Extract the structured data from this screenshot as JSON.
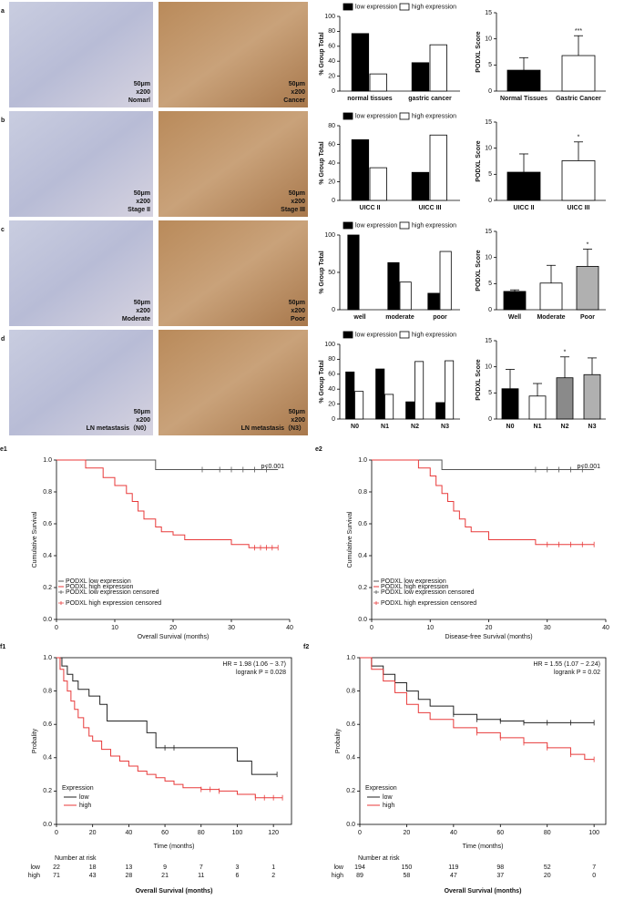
{
  "rows": [
    {
      "label": "a",
      "images": [
        {
          "captions": [
            "50μm",
            "x200",
            "Nomarl"
          ]
        },
        {
          "captions": [
            "50μm",
            "x200",
            "Cancer"
          ]
        }
      ]
    },
    {
      "label": "b",
      "images": [
        {
          "captions": [
            "50μm",
            "x200",
            "Stage II"
          ]
        },
        {
          "captions": [
            "50μm",
            "x200",
            "Stage III"
          ]
        }
      ]
    },
    {
      "label": "c",
      "images": [
        {
          "captions": [
            "50μm",
            "x200",
            "Moderate"
          ]
        },
        {
          "captions": [
            "50μm",
            "x200",
            "Poor"
          ]
        }
      ]
    },
    {
      "label": "d",
      "images": [
        {
          "captions": [
            "50μm",
            "x200",
            "LN metastasis（N0）"
          ]
        },
        {
          "captions": [
            "50μm",
            "x200",
            "LN metastasis（N3）"
          ]
        }
      ]
    }
  ],
  "chart_data": [
    {
      "type": "bar",
      "ylabel": "% Group Total",
      "categories": [
        "normal tissues",
        "gastric cancer"
      ],
      "series": [
        {
          "name": "low expression",
          "color": "#000000",
          "values": [
            77,
            38
          ]
        },
        {
          "name": "high expression",
          "color": "#ffffff",
          "values": [
            23,
            62
          ]
        }
      ],
      "ylim": [
        0,
        100
      ],
      "yticks": [
        0,
        20,
        40,
        60,
        80,
        100
      ]
    },
    {
      "type": "bar",
      "ylabel": "PODXL Score",
      "categories": [
        "Normal Tissues",
        "Gastric Cancer"
      ],
      "values": [
        4,
        6.8
      ],
      "errors": [
        2.4,
        3.8
      ],
      "colors": [
        "#000000",
        "#ffffff"
      ],
      "annotation": "***",
      "ylim": [
        0,
        15
      ],
      "yticks": [
        0,
        5,
        10,
        15
      ]
    },
    {
      "type": "bar",
      "ylabel": "% Group Total",
      "categories": [
        "UICC II",
        "UICC III"
      ],
      "series": [
        {
          "name": "low expression",
          "color": "#000000",
          "values": [
            65,
            30
          ]
        },
        {
          "name": "high expression",
          "color": "#ffffff",
          "values": [
            35,
            70
          ]
        }
      ],
      "ylim": [
        0,
        80
      ],
      "yticks": [
        0,
        20,
        40,
        60,
        80
      ]
    },
    {
      "type": "bar",
      "ylabel": "PODXL Score",
      "categories": [
        "UICC II",
        "UICC III"
      ],
      "values": [
        5.4,
        7.6
      ],
      "errors": [
        3.5,
        3.6
      ],
      "colors": [
        "#000000",
        "#ffffff"
      ],
      "annotation": "*",
      "ylim": [
        0,
        15
      ],
      "yticks": [
        0,
        5,
        10,
        15
      ]
    },
    {
      "type": "bar",
      "ylabel": "% Group Total",
      "categories": [
        "well",
        "moderate",
        "poor"
      ],
      "series": [
        {
          "name": "low expression",
          "color": "#000000",
          "values": [
            100,
            63,
            22
          ]
        },
        {
          "name": "high expression",
          "color": "#ffffff",
          "values": [
            0,
            37,
            78
          ]
        }
      ],
      "ylim": [
        0,
        100
      ],
      "yticks": [
        0,
        50,
        100
      ]
    },
    {
      "type": "bar",
      "ylabel": "PODXL Score",
      "categories": [
        "Well",
        "Moderate",
        "Poor"
      ],
      "values": [
        3.5,
        5.1,
        8.3
      ],
      "errors": [
        0.3,
        3.4,
        3.3
      ],
      "colors": [
        "#000000",
        "#ffffff",
        "#b0b0b0"
      ],
      "annotation": "*",
      "ylim": [
        0,
        15
      ],
      "yticks": [
        0,
        5,
        10,
        15
      ]
    },
    {
      "type": "bar",
      "ylabel": "% Group Total",
      "categories": [
        "N0",
        "N1",
        "N2",
        "N3"
      ],
      "series": [
        {
          "name": "low expression",
          "color": "#000000",
          "values": [
            63,
            67,
            23,
            22
          ]
        },
        {
          "name": "high expression",
          "color": "#ffffff",
          "values": [
            37,
            33,
            77,
            78
          ]
        }
      ],
      "ylim": [
        0,
        100
      ],
      "yticks": [
        0,
        20,
        40,
        60,
        80,
        100
      ]
    },
    {
      "type": "bar",
      "ylabel": "PODXL Score",
      "categories": [
        "N0",
        "N1",
        "N2",
        "N3"
      ],
      "values": [
        5.8,
        4.4,
        7.9,
        8.5
      ],
      "errors": [
        3.7,
        2.4,
        4,
        3.2
      ],
      "colors": [
        "#000000",
        "#ffffff",
        "#8a8a8a",
        "#b0b0b0"
      ],
      "annotation": "*",
      "ylim": [
        0,
        15
      ],
      "yticks": [
        0,
        5,
        10,
        15
      ]
    },
    {
      "type": "step",
      "panel": "e1",
      "ylabel": "Cumulative Survival",
      "xlabel": "Overall Survival    (months)",
      "annotations": [
        "p<0.001"
      ],
      "xlim": [
        0,
        40
      ],
      "xticks": [
        0,
        10,
        20,
        30,
        40
      ],
      "ylim": [
        0,
        1
      ],
      "yticks": [
        {
          "value": 0,
          "label": "0.0"
        },
        {
          "value": 0.2,
          "label": "0.2"
        },
        {
          "value": 0.4,
          "label": "0.4"
        },
        {
          "value": 0.6,
          "label": "0.6"
        },
        {
          "value": 0.8,
          "label": "0.8"
        },
        {
          "value": 1,
          "label": "1.0"
        }
      ],
      "series": [
        {
          "name": "PODXL low expression",
          "color": "#555555",
          "x": [
            0,
            17,
            38
          ],
          "values": [
            1,
            0.94,
            0.94
          ],
          "censored_name": "PODXL low expression censored",
          "censored_x": [
            25,
            28,
            30,
            32,
            34,
            36
          ],
          "censored_values": [
            0.94,
            0.94,
            0.94,
            0.94,
            0.94,
            0.94
          ]
        },
        {
          "name": "PODXL high expression",
          "color": "#e83a3a",
          "x": [
            0,
            5,
            8,
            10,
            12,
            13,
            14,
            15,
            17,
            18,
            20,
            22,
            25,
            30,
            33,
            38
          ],
          "values": [
            1,
            0.95,
            0.89,
            0.84,
            0.79,
            0.74,
            0.68,
            0.63,
            0.58,
            0.55,
            0.53,
            0.5,
            0.5,
            0.47,
            0.45,
            0.45
          ],
          "censored_name": "PODXL high expression censored",
          "censored_x": [
            34,
            35,
            36,
            37,
            38
          ],
          "censored_values": [
            0.45,
            0.45,
            0.45,
            0.45,
            0.45
          ]
        }
      ]
    },
    {
      "type": "step",
      "panel": "e2",
      "ylabel": "Cumulative Survival",
      "xlabel": "Disease-free Survival   (months)",
      "annotations": [
        "p<0.001"
      ],
      "xlim": [
        0,
        40
      ],
      "xticks": [
        0,
        10,
        20,
        30,
        40
      ],
      "ylim": [
        0,
        1
      ],
      "yticks": [
        {
          "value": 0,
          "label": "0.0"
        },
        {
          "value": 0.2,
          "label": "0.2"
        },
        {
          "value": 0.4,
          "label": "0.4"
        },
        {
          "value": 0.6,
          "label": "0.6"
        },
        {
          "value": 0.8,
          "label": "0.8"
        },
        {
          "value": 1,
          "label": "1.0"
        }
      ],
      "series": [
        {
          "name": "PODXL low expression",
          "color": "#555555",
          "x": [
            0,
            12,
            38
          ],
          "values": [
            1,
            0.94,
            0.94
          ],
          "censored_name": "PODXL low expression censored",
          "censored_x": [
            28,
            30,
            32,
            34,
            36
          ],
          "censored_values": [
            0.94,
            0.94,
            0.94,
            0.94,
            0.94
          ]
        },
        {
          "name": "PODXL high expression",
          "color": "#e83a3a",
          "x": [
            0,
            8,
            10,
            11,
            12,
            13,
            14,
            15,
            16,
            17,
            20,
            28,
            38
          ],
          "values": [
            1,
            0.95,
            0.9,
            0.84,
            0.79,
            0.74,
            0.68,
            0.63,
            0.58,
            0.55,
            0.5,
            0.47,
            0.47
          ],
          "censored_name": "PODXL high expression censored",
          "censored_x": [
            30,
            32,
            34,
            36,
            38
          ],
          "censored_values": [
            0.47,
            0.47,
            0.47,
            0.47,
            0.47
          ]
        }
      ]
    },
    {
      "type": "step",
      "panel": "f1",
      "ylabel": "Probality",
      "xlabel": "Time (months)",
      "footer": "Overall Survival   (months)",
      "annotations": [
        "HR = 1.98 (1.06 − 3.7)",
        "logrank P = 0.028"
      ],
      "legend_title": "Expression",
      "xlim": [
        0,
        130
      ],
      "xticks": [
        0,
        20,
        40,
        60,
        80,
        100,
        120
      ],
      "ylim": [
        0,
        1
      ],
      "yticks": [
        {
          "value": 0,
          "label": "0.0"
        },
        {
          "value": 0.2,
          "label": "0.2"
        },
        {
          "value": 0.4,
          "label": "0.4"
        },
        {
          "value": 0.6,
          "label": "0.6"
        },
        {
          "value": 0.8,
          "label": "0.8"
        },
        {
          "value": 1,
          "label": "1.0"
        }
      ],
      "series": [
        {
          "name": "low",
          "color": "#222222",
          "x": [
            0,
            3,
            6,
            9,
            12,
            18,
            24,
            28,
            50,
            55,
            100,
            108,
            122
          ],
          "values": [
            1,
            0.95,
            0.9,
            0.86,
            0.81,
            0.77,
            0.72,
            0.62,
            0.55,
            0.46,
            0.38,
            0.3,
            0.3
          ],
          "censored_x": [
            60,
            65,
            122
          ],
          "censored_values": [
            0.46,
            0.46,
            0.3
          ]
        },
        {
          "name": "high",
          "color": "#e83a3a",
          "x": [
            0,
            2,
            4,
            6,
            8,
            10,
            12,
            15,
            18,
            20,
            25,
            30,
            35,
            40,
            45,
            50,
            55,
            60,
            65,
            70,
            80,
            90,
            100,
            110,
            125
          ],
          "values": [
            1,
            0.93,
            0.86,
            0.8,
            0.74,
            0.69,
            0.64,
            0.58,
            0.53,
            0.5,
            0.45,
            0.41,
            0.38,
            0.35,
            0.32,
            0.3,
            0.28,
            0.26,
            0.24,
            0.22,
            0.21,
            0.2,
            0.18,
            0.16,
            0.16
          ],
          "censored_x": [
            80,
            85,
            90,
            110,
            115,
            120,
            125
          ],
          "censored_values": [
            0.21,
            0.21,
            0.2,
            0.16,
            0.16,
            0.16,
            0.16
          ]
        }
      ],
      "risk": {
        "title": "Number at risk",
        "rows": [
          {
            "name": "low",
            "values": [
              22,
              18,
              13,
              9,
              7,
              3,
              1
            ]
          },
          {
            "name": "high",
            "values": [
              71,
              43,
              28,
              21,
              11,
              6,
              2
            ]
          }
        ]
      }
    },
    {
      "type": "step",
      "panel": "f2",
      "ylabel": "Probality",
      "xlabel": "Time (months)",
      "footer": "Overall Survival   (months)",
      "annotations": [
        "HR = 1.55 (1.07 − 2.24)",
        "logrank P = 0.02"
      ],
      "legend_title": "Expression",
      "xlim": [
        0,
        105
      ],
      "xticks": [
        0,
        20,
        40,
        60,
        80,
        100
      ],
      "ylim": [
        0,
        1
      ],
      "yticks": [
        {
          "value": 0,
          "label": "0.0"
        },
        {
          "value": 0.2,
          "label": "0.2"
        },
        {
          "value": 0.4,
          "label": "0.4"
        },
        {
          "value": 0.6,
          "label": "0.6"
        },
        {
          "value": 0.8,
          "label": "0.8"
        },
        {
          "value": 1,
          "label": "1.0"
        }
      ],
      "series": [
        {
          "name": "low",
          "color": "#222222",
          "x": [
            0,
            5,
            10,
            15,
            20,
            25,
            30,
            40,
            50,
            60,
            70,
            100
          ],
          "values": [
            1,
            0.95,
            0.9,
            0.85,
            0.8,
            0.75,
            0.71,
            0.66,
            0.63,
            0.62,
            0.61,
            0.61
          ],
          "censored_x": [
            40,
            50,
            60,
            70,
            80,
            90,
            100
          ],
          "censored_values": [
            0.66,
            0.63,
            0.62,
            0.61,
            0.61,
            0.61,
            0.61
          ]
        },
        {
          "name": "high",
          "color": "#e83a3a",
          "x": [
            0,
            5,
            10,
            15,
            20,
            25,
            30,
            40,
            50,
            60,
            70,
            80,
            90,
            96,
            100
          ],
          "values": [
            1,
            0.93,
            0.86,
            0.79,
            0.72,
            0.67,
            0.63,
            0.58,
            0.55,
            0.52,
            0.49,
            0.46,
            0.42,
            0.39,
            0.39
          ],
          "censored_x": [
            50,
            60,
            70,
            80,
            90,
            100
          ],
          "censored_values": [
            0.55,
            0.52,
            0.49,
            0.46,
            0.42,
            0.39
          ]
        }
      ],
      "risk": {
        "title": "Number at risk",
        "rows": [
          {
            "name": "low",
            "values": [
              194,
              150,
              119,
              98,
              52,
              7
            ]
          },
          {
            "name": "high",
            "values": [
              89,
              58,
              47,
              37,
              20,
              0
            ]
          }
        ]
      }
    }
  ]
}
